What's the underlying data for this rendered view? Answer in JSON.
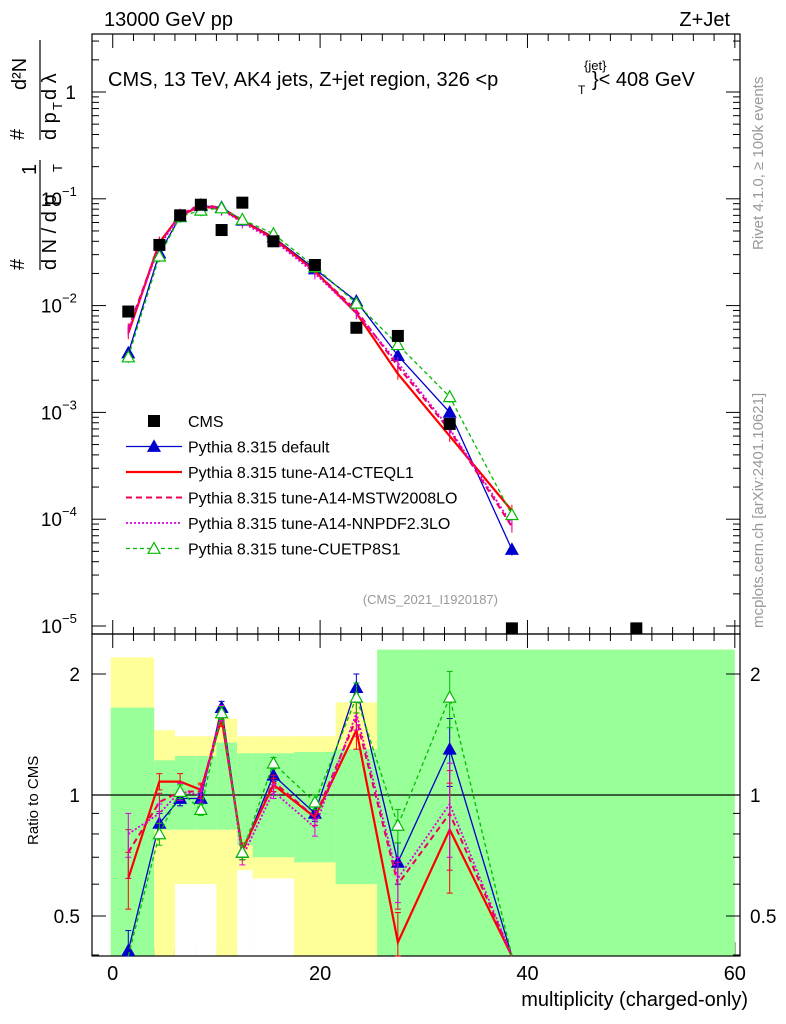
{
  "header": {
    "left": "13000 GeV pp",
    "right": "Z+Jet"
  },
  "side_labels": {
    "rivet": "Rivet 4.1.0, ≥ 100k events",
    "mcplots": "mcplots.cern.ch [arXiv:2401.10621]"
  },
  "chart_data": {
    "type": "line",
    "title": "CMS, 13 TeV, AK4 jets, Z+jet region, 326 <p_T^{jet}< 408 GeV",
    "title_parts": {
      "main": "CMS, 13 TeV, AK4 jets, Z+jet region, 326 <p",
      "sub": "T",
      "sup": "{jet}",
      "tail": "}< 408 GeV"
    },
    "analysis_id": "(CMS_2021_I1920187)",
    "xlabel": "multiplicity (charged-only)",
    "ylabel": "1/N dN/dp_T d²N/dp_T dλ",
    "ylabel_parts": {
      "frac1_num": "1",
      "frac1_den": "d N / d p",
      "frac2_num": "d²N",
      "frac2_den": "d p",
      "frac2_den_tail": "d λ",
      "sub": "T",
      "hash": "#"
    },
    "ratio_ylabel": "Ratio to CMS",
    "xlim": [
      -2,
      60.5
    ],
    "ylim": [
      1e-05,
      6.0
    ],
    "ratio_ylim": [
      0.35,
      2.3
    ],
    "x_ticks": [
      0,
      20,
      40,
      60
    ],
    "y_tick_labels": [
      {
        "value": 1,
        "label": "1"
      },
      {
        "value": 0.1,
        "label": "10",
        "exp": "−1"
      },
      {
        "value": 0.01,
        "label": "10",
        "exp": "−2"
      },
      {
        "value": 0.001,
        "label": "10",
        "exp": "−3"
      },
      {
        "value": 0.0001,
        "label": "10",
        "exp": "−4"
      },
      {
        "value": 1e-05,
        "label": "10",
        "exp": "−5"
      }
    ],
    "ratio_ticks": [
      0.5,
      1,
      2
    ],
    "bins": [
      [
        0,
        3
      ],
      [
        3,
        5
      ],
      [
        5,
        7
      ],
      [
        7,
        9
      ],
      [
        9,
        11
      ],
      [
        11,
        13
      ],
      [
        13,
        17
      ],
      [
        17,
        21
      ],
      [
        21,
        29
      ],
      [
        29,
        59
      ]
    ],
    "data_bins_note": "bin edges are x data units",
    "cms": {
      "x": [
        1.5,
        4.5,
        6.5,
        8.5,
        10.5,
        12.5,
        15.5,
        19.5,
        23.5,
        27.5,
        32.5,
        38.5,
        50.5
      ],
      "y": [
        0.0088,
        0.037,
        0.07,
        0.088,
        0.051,
        0.092,
        0.04,
        0.024,
        0.0062,
        0.0052,
        0.00078,
        9.5e-06,
        9.5e-06
      ]
    },
    "ratio_bands": {
      "x_edges": [
        -0.2,
        4,
        6,
        8,
        10,
        12,
        13.5,
        17.5,
        21.5,
        25.5,
        29.5,
        60
      ],
      "yellow_lo": [
        0.35,
        0.35,
        0.35,
        0.35,
        0.35,
        0.35,
        0.35,
        0.35,
        0.35,
        0.35,
        0.35
      ],
      "yellow_hi": [
        2.2,
        1.45,
        1.4,
        1.4,
        1.55,
        1.4,
        1.4,
        1.4,
        1.7,
        1.7,
        2.3
      ],
      "green_lo": [
        0.35,
        0.82,
        0.82,
        0.82,
        0.82,
        0.75,
        0.7,
        0.68,
        0.6,
        0.35,
        0.35
      ],
      "green_hi": [
        1.65,
        1.22,
        1.25,
        1.25,
        1.35,
        1.27,
        1.27,
        1.28,
        1.3,
        2.3,
        2.3
      ],
      "white_lo": [
        0.35,
        0.35,
        0.35,
        0.35,
        0.35,
        0.35,
        0.35,
        0.35,
        0.35,
        0.35,
        0.35
      ],
      "white_hi": [
        0.35,
        0.35,
        0.6,
        0.6,
        0.35,
        0.65,
        0.62,
        0.35,
        0.35,
        0.35,
        0.35
      ]
    },
    "series": [
      {
        "name": "Pythia 8.315 default",
        "color": "#0000cc",
        "dash": "",
        "width": 1.3,
        "marker": "triangle-filled",
        "x": [
          1.5,
          4.5,
          6.5,
          8.5,
          10.5,
          12.5,
          15.5,
          19.5,
          23.5,
          27.5,
          32.5,
          38.5
        ],
        "y": [
          0.0036,
          0.031,
          0.068,
          0.086,
          0.083,
          0.063,
          0.044,
          0.022,
          0.011,
          0.0034,
          0.001,
          5.2e-05
        ],
        "ratio": [
          0.41,
          0.85,
          0.98,
          0.98,
          1.65,
          0.72,
          1.12,
          0.9,
          1.85,
          0.68,
          1.3,
          0.1
        ],
        "ratio_err": [
          0.05,
          0.05,
          0.04,
          0.03,
          0.06,
          0.03,
          0.04,
          0.04,
          0.15,
          0.08,
          0.25,
          0.3
        ]
      },
      {
        "name": "Pythia 8.315 tune-A14-CTEQL1",
        "color": "#ff0000",
        "dash": "",
        "width": 2.2,
        "marker": "none",
        "x": [
          1.5,
          4.5,
          6.5,
          8.5,
          10.5,
          12.5,
          15.5,
          19.5,
          23.5,
          27.5,
          32.5,
          38.5
        ],
        "y": [
          0.0055,
          0.039,
          0.07,
          0.085,
          0.08,
          0.062,
          0.043,
          0.021,
          0.0085,
          0.0023,
          0.0006,
          0.00012
        ],
        "ratio": [
          0.62,
          1.08,
          1.08,
          1.03,
          1.55,
          0.73,
          1.06,
          0.88,
          1.45,
          0.43,
          0.82,
          0.3
        ],
        "ratio_err": [
          0.1,
          0.05,
          0.05,
          0.04,
          0.07,
          0.03,
          0.04,
          0.04,
          0.15,
          0.08,
          0.25,
          0.3
        ]
      },
      {
        "name": "Pythia 8.315 tune-A14-MSTW2008LO",
        "color": "#ee0055",
        "dash": "6,4",
        "width": 2.0,
        "marker": "none",
        "x": [
          1.5,
          4.5,
          6.5,
          8.5,
          10.5,
          12.5,
          15.5,
          19.5,
          23.5,
          27.5,
          32.5,
          38.5
        ],
        "y": [
          0.006,
          0.038,
          0.071,
          0.089,
          0.082,
          0.063,
          0.042,
          0.021,
          0.009,
          0.0027,
          0.00068,
          8.5e-05
        ],
        "ratio": [
          0.72,
          0.96,
          1.02,
          1.02,
          1.6,
          0.72,
          1.08,
          0.88,
          1.55,
          0.6,
          0.9,
          0.3
        ],
        "ratio_err": [
          0.1,
          0.05,
          0.05,
          0.04,
          0.07,
          0.03,
          0.04,
          0.04,
          0.15,
          0.08,
          0.25,
          0.3
        ]
      },
      {
        "name": "Pythia 8.315 tune-A14-NNPDF2.3LO",
        "color": "#dd00dd",
        "dash": "2,2",
        "width": 1.8,
        "marker": "none",
        "x": [
          1.5,
          4.5,
          6.5,
          8.5,
          10.5,
          12.5,
          15.5,
          19.5,
          23.5,
          27.5,
          32.5,
          38.5
        ],
        "y": [
          0.0058,
          0.036,
          0.071,
          0.087,
          0.079,
          0.06,
          0.041,
          0.02,
          0.0085,
          0.0029,
          0.0007,
          9e-05
        ],
        "ratio": [
          0.8,
          0.9,
          1.02,
          1.0,
          1.6,
          0.7,
          1.02,
          0.83,
          1.6,
          0.62,
          0.95,
          0.3
        ],
        "ratio_err": [
          0.1,
          0.05,
          0.05,
          0.04,
          0.07,
          0.03,
          0.04,
          0.04,
          0.15,
          0.08,
          0.25,
          0.3
        ]
      },
      {
        "name": "Pythia 8.315 tune-CUETP8S1",
        "color": "#00bb00",
        "dash": "4,3",
        "width": 1.3,
        "marker": "triangle-open",
        "x": [
          1.5,
          4.5,
          6.5,
          8.5,
          10.5,
          12.5,
          15.5,
          19.5,
          23.5,
          27.5,
          32.5,
          38.5
        ],
        "y": [
          0.0033,
          0.029,
          0.068,
          0.078,
          0.082,
          0.064,
          0.047,
          0.023,
          0.0105,
          0.0043,
          0.0014,
          0.00011
        ],
        "ratio": [
          0.25,
          0.8,
          1.02,
          0.92,
          1.6,
          0.72,
          1.2,
          0.96,
          1.75,
          0.84,
          1.75,
          0.3
        ],
        "ratio_err": [
          0.05,
          0.05,
          0.04,
          0.03,
          0.06,
          0.03,
          0.04,
          0.04,
          0.15,
          0.08,
          0.28,
          0.3
        ]
      }
    ],
    "legend": {
      "position": "lower-left",
      "entries": [
        "CMS",
        "Pythia 8.315 default",
        "Pythia 8.315 tune-A14-CTEQL1",
        "Pythia 8.315 tune-A14-MSTW2008LO",
        "Pythia 8.315 tune-A14-NNPDF2.3LO",
        "Pythia 8.315 tune-CUETP8S1"
      ]
    },
    "colors": {
      "band_yellow": "#ffff99",
      "band_green": "#99ff99",
      "cms_marker": "#000000"
    }
  }
}
